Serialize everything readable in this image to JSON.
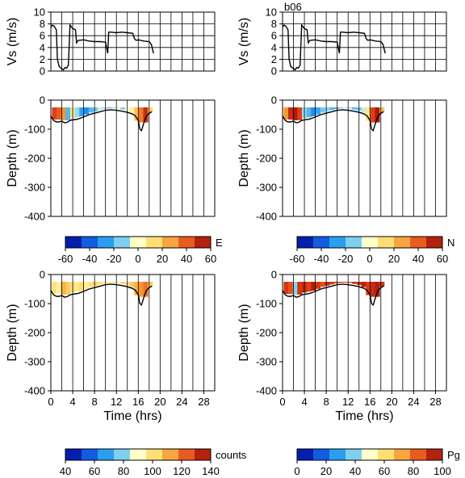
{
  "station_label": "b06",
  "chart_data": [
    {
      "id": "vs-left",
      "type": "line",
      "ylabel": "Vs (m/s)",
      "xlim": [
        0,
        30
      ],
      "ylim": [
        0,
        10
      ],
      "yticks": [
        0,
        2,
        4,
        6,
        8,
        10
      ],
      "grid": true,
      "x": [
        0,
        0.3,
        0.6,
        1.0,
        1.2,
        1.5,
        2.0,
        2.3,
        2.6,
        2.9,
        3.2,
        3.5,
        4.0,
        4.5,
        4.7,
        5.0,
        6.0,
        7.0,
        8.0,
        9.0,
        10.0,
        10.4,
        10.6,
        11.0,
        12.0,
        13.0,
        14.0,
        15.0,
        15.3,
        15.6,
        16.0,
        17.0,
        18.0,
        18.4,
        18.8
      ],
      "y": [
        7.5,
        7.8,
        7.6,
        7.0,
        2.0,
        0.8,
        0.4,
        0.2,
        0.6,
        0.5,
        1.0,
        7.8,
        7.2,
        7.0,
        4.8,
        5.2,
        5.3,
        5.1,
        5.0,
        5.0,
        4.9,
        3.0,
        6.6,
        6.6,
        6.5,
        6.6,
        6.5,
        6.4,
        5.5,
        5.2,
        5.3,
        5.1,
        5.0,
        4.5,
        3.0
      ]
    },
    {
      "id": "vs-right",
      "type": "line",
      "ylabel": "Vs (m/s)",
      "xlim": [
        0,
        30
      ],
      "ylim": [
        0,
        10
      ],
      "yticks": [
        0,
        2,
        4,
        6,
        8,
        10
      ],
      "grid": true,
      "x": [
        0,
        0.3,
        0.6,
        1.0,
        1.2,
        1.5,
        2.0,
        2.3,
        2.6,
        2.9,
        3.2,
        3.5,
        4.0,
        4.5,
        4.7,
        5.0,
        6.0,
        7.0,
        8.0,
        9.0,
        10.0,
        10.4,
        10.6,
        11.0,
        12.0,
        13.0,
        14.0,
        15.0,
        15.3,
        15.6,
        16.0,
        17.0,
        18.0,
        18.4,
        18.8
      ],
      "y": [
        7.5,
        7.8,
        7.6,
        7.0,
        2.0,
        0.8,
        0.4,
        0.2,
        0.6,
        0.5,
        1.0,
        7.8,
        7.2,
        7.0,
        4.8,
        5.2,
        5.3,
        5.1,
        5.0,
        5.0,
        4.9,
        3.0,
        6.6,
        6.6,
        6.5,
        6.6,
        6.5,
        6.4,
        5.5,
        5.2,
        5.3,
        5.1,
        5.0,
        4.5,
        3.0
      ]
    },
    {
      "id": "depth-e",
      "type": "heatmap",
      "ylabel": "Depth (m)",
      "xlabel": "",
      "xlim": [
        0,
        30
      ],
      "ylim": [
        -400,
        0
      ],
      "yticks": [
        0,
        -100,
        -200,
        -300,
        -400
      ],
      "variable": "E",
      "value_range": [
        -60,
        60
      ],
      "colormap": "blue-red",
      "cell_values": [
        45,
        40,
        30,
        -20,
        10,
        -10,
        -25,
        -30,
        -20,
        -15,
        -5,
        -10,
        -20,
        -10,
        5,
        -15,
        0,
        5,
        20,
        35,
        50,
        15
      ]
    },
    {
      "id": "depth-n",
      "type": "heatmap",
      "ylabel": "Depth (m)",
      "xlabel": "",
      "xlim": [
        0,
        30
      ],
      "ylim": [
        -400,
        0
      ],
      "yticks": [
        0,
        -100,
        -200,
        -300,
        -400
      ],
      "variable": "N",
      "value_range": [
        -60,
        60
      ],
      "colormap": "blue-red",
      "cell_values": [
        30,
        50,
        55,
        45,
        -10,
        -20,
        -30,
        -25,
        -15,
        -10,
        -20,
        -25,
        -15,
        -5,
        -10,
        -20,
        -15,
        -5,
        10,
        45,
        55,
        20
      ]
    },
    {
      "id": "depth-counts",
      "type": "heatmap",
      "ylabel": "Depth (m)",
      "xlabel": "Time (hrs)",
      "xlim": [
        0,
        30
      ],
      "ylim": [
        -400,
        0
      ],
      "xticks": [
        0,
        4,
        8,
        12,
        16,
        20,
        24,
        28
      ],
      "yticks": [
        0,
        -100,
        -200,
        -300,
        -400
      ],
      "variable": "counts",
      "value_range": [
        40,
        140
      ],
      "colormap": "blue-red",
      "cell_values": [
        100,
        95,
        110,
        105,
        100,
        98,
        102,
        96,
        100,
        104,
        100,
        98,
        102,
        100,
        96,
        104,
        100,
        106,
        110,
        115,
        120,
        105
      ]
    },
    {
      "id": "depth-pg",
      "type": "heatmap",
      "ylabel": "Depth (m)",
      "xlabel": "Time (hrs)",
      "xlim": [
        0,
        30
      ],
      "ylim": [
        -400,
        0
      ],
      "xticks": [
        0,
        4,
        8,
        12,
        16,
        20,
        24,
        28
      ],
      "yticks": [
        0,
        -100,
        -200,
        -300,
        -400
      ],
      "variable": "Pg",
      "value_range": [
        0,
        100
      ],
      "colormap": "blue-red",
      "cell_values": [
        90,
        85,
        40,
        90,
        92,
        88,
        95,
        90,
        85,
        92,
        90,
        88,
        94,
        90,
        85,
        92,
        90,
        94,
        88,
        92,
        95,
        90
      ]
    }
  ],
  "bottom_depth": {
    "x": [
      0,
      0.5,
      1.0,
      1.5,
      2.0,
      2.5,
      3.0,
      3.5,
      4.0,
      5.0,
      6.0,
      7.0,
      8.0,
      9.0,
      10.0,
      11.0,
      12.0,
      13.0,
      14.0,
      15.0,
      15.5,
      16.0,
      16.3,
      16.6,
      17.0,
      17.5,
      18.0,
      18.5
    ],
    "y": [
      -55,
      -70,
      -75,
      -75,
      -72,
      -78,
      -76,
      -70,
      -68,
      -65,
      -58,
      -50,
      -45,
      -40,
      -35,
      -33,
      -35,
      -38,
      -42,
      -48,
      -55,
      -70,
      -100,
      -105,
      -80,
      -55,
      -45,
      -40
    ]
  },
  "colorbars": [
    {
      "id": "cb-e",
      "label": "E",
      "ticks": [
        "-60",
        "-40",
        "-20",
        "0",
        "20",
        "40",
        "60"
      ]
    },
    {
      "id": "cb-n",
      "label": "N",
      "ticks": [
        "-60",
        "-40",
        "-20",
        "0",
        "20",
        "40",
        "60"
      ]
    },
    {
      "id": "cb-counts",
      "label": "counts",
      "ticks": [
        "40",
        "60",
        "80",
        "100",
        "120",
        "140"
      ]
    },
    {
      "id": "cb-pg",
      "label": "Pg",
      "ticks": [
        "0",
        "20",
        "40",
        "60",
        "80",
        "100"
      ]
    }
  ],
  "colors": {
    "line": "#000000",
    "grid": "#000000"
  }
}
